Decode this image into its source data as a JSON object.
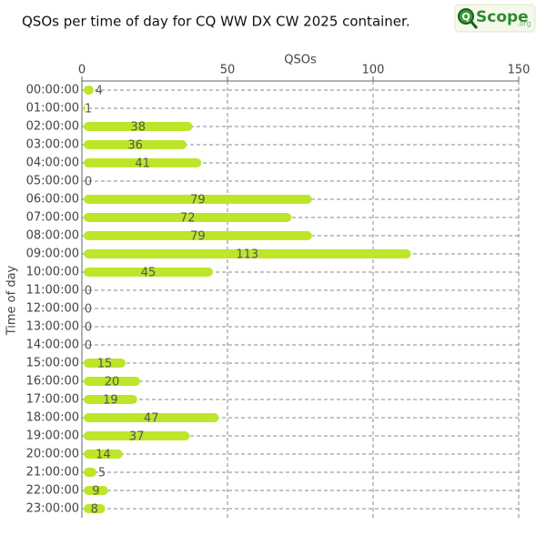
{
  "logo": {
    "mark": "Q",
    "text": "Scope",
    "suffix": ".org"
  },
  "chart_data": {
    "type": "barh",
    "title": "QSOs per time of day for CQ WW DX CW 2025 container.",
    "x_label": "QSOs",
    "y_label": "Time of day",
    "categories": [
      "00:00:00",
      "01:00:00",
      "02:00:00",
      "03:00:00",
      "04:00:00",
      "05:00:00",
      "06:00:00",
      "07:00:00",
      "08:00:00",
      "09:00:00",
      "10:00:00",
      "11:00:00",
      "12:00:00",
      "13:00:00",
      "14:00:00",
      "15:00:00",
      "16:00:00",
      "17:00:00",
      "18:00:00",
      "19:00:00",
      "20:00:00",
      "21:00:00",
      "22:00:00",
      "23:00:00"
    ],
    "values": [
      4,
      1,
      38,
      36,
      41,
      0,
      79,
      72,
      79,
      113,
      45,
      0,
      0,
      0,
      0,
      15,
      20,
      19,
      47,
      37,
      14,
      5,
      9,
      8
    ],
    "color": "#bde52a",
    "xlim": [
      0,
      150
    ],
    "xticks": [
      0,
      50,
      100,
      150
    ],
    "grid": true
  }
}
